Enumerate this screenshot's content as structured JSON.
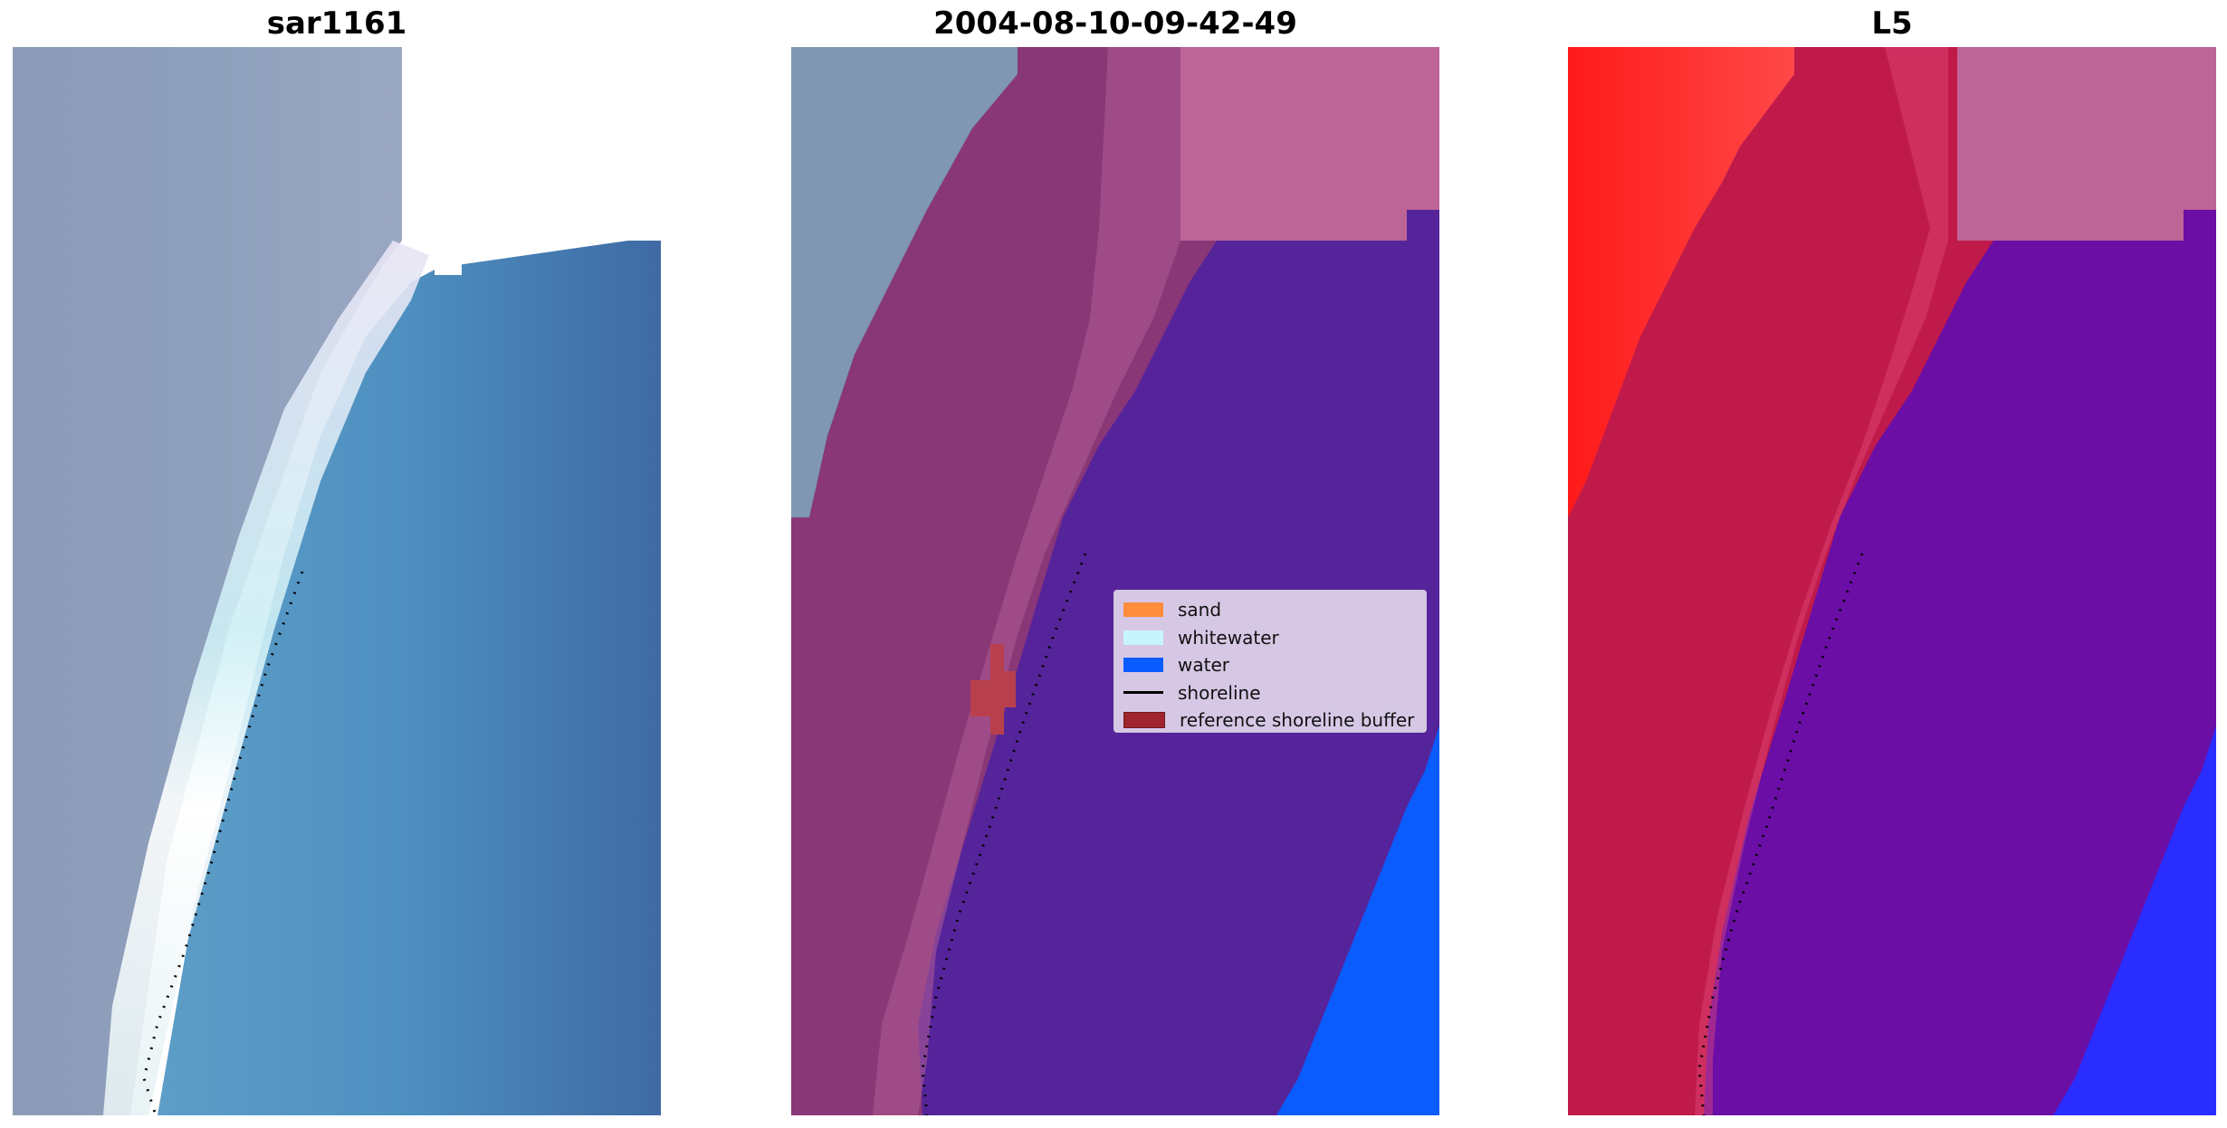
{
  "panels": [
    {
      "title": "sar1161"
    },
    {
      "title": "2004-08-10-09-42-49"
    },
    {
      "title": "L5"
    }
  ],
  "legend": {
    "items": [
      {
        "label": "sand",
        "color": "#ff8c3a"
      },
      {
        "label": "whitewater",
        "color": "#c8f5fb"
      },
      {
        "label": "water",
        "color": "#0a5cff"
      },
      {
        "label": "shoreline",
        "color": "#000000"
      },
      {
        "label": "reference shoreline buffer",
        "color": "#a0252e"
      }
    ]
  }
}
